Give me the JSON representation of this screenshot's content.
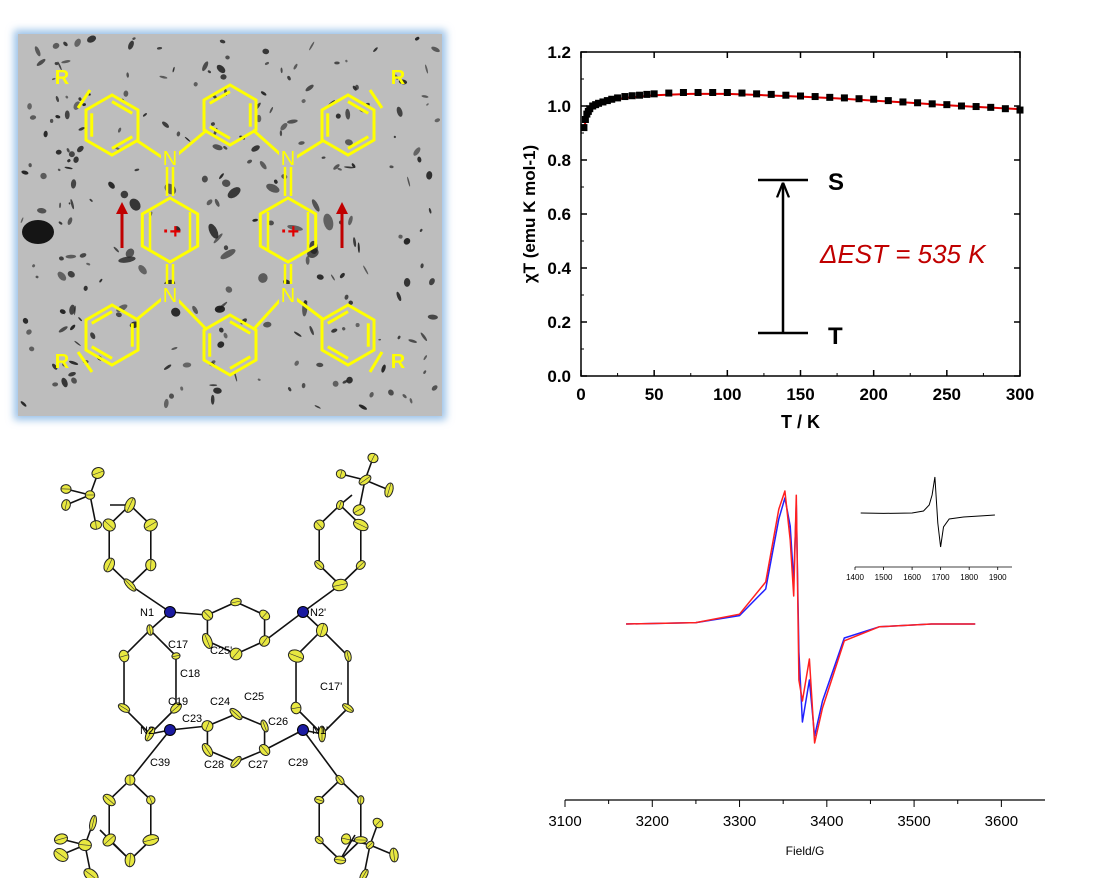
{
  "colors": {
    "molecule": "#ffff00",
    "radical": "#e00000",
    "arrow_red": "#c00000",
    "fit_line": "#e00000",
    "epr_red": "#ff2020",
    "epr_blue": "#2020ff",
    "nitrogen": "#1a1aa0",
    "ellipsoid": "#e8e840",
    "frame_glow": "#9cc2e8"
  },
  "structure_panel": {
    "substituent_labels": [
      "R",
      "R",
      "R",
      "R"
    ],
    "nitrogen_labels": [
      "N",
      "N",
      "N",
      "N"
    ],
    "radical_cation_label": "·+",
    "spin_arrow_icons": [
      "up-arrow",
      "up-arrow"
    ]
  },
  "crystal_panel": {
    "atom_labels": [
      "N1",
      "N2'",
      "C17",
      "C25'",
      "C18",
      "C19",
      "C24",
      "C25",
      "C17'",
      "N2",
      "C26",
      "N1'",
      "C23",
      "C39",
      "C28",
      "C27",
      "C29"
    ]
  },
  "chart_data": [
    {
      "type": "scatter",
      "title": "",
      "xlabel": "T / K",
      "ylabel": "χT (emu K mol-1)",
      "xlim": [
        0,
        300
      ],
      "ylim": [
        0,
        1.2
      ],
      "xticks": [
        "0",
        "50",
        "100",
        "150",
        "200",
        "250",
        "300"
      ],
      "yticks": [
        "0.0",
        "0.2",
        "0.4",
        "0.6",
        "0.8",
        "1.0",
        "1.2"
      ],
      "grid": false,
      "series": [
        {
          "marker": "square",
          "x": [
            2,
            3,
            4,
            5,
            6,
            8,
            10,
            12,
            15,
            18,
            21,
            25,
            30,
            35,
            40,
            45,
            50,
            60,
            70,
            80,
            90,
            100,
            110,
            120,
            130,
            140,
            150,
            160,
            170,
            180,
            190,
            200,
            210,
            220,
            230,
            240,
            250,
            260,
            270,
            280,
            290,
            300
          ],
          "y": [
            0.92,
            0.95,
            0.97,
            0.98,
            0.99,
            1.0,
            1.005,
            1.01,
            1.015,
            1.02,
            1.025,
            1.03,
            1.035,
            1.038,
            1.04,
            1.043,
            1.045,
            1.048,
            1.05,
            1.05,
            1.05,
            1.05,
            1.048,
            1.045,
            1.043,
            1.04,
            1.037,
            1.035,
            1.032,
            1.03,
            1.027,
            1.025,
            1.02,
            1.015,
            1.012,
            1.008,
            1.005,
            1.0,
            0.998,
            0.995,
            0.99,
            0.985
          ]
        },
        {
          "line": "fit",
          "x": [
            2,
            5,
            10,
            20,
            30,
            50,
            75,
            100,
            125,
            150,
            175,
            200,
            225,
            250,
            275,
            300
          ],
          "y": [
            0.92,
            0.975,
            1.0,
            1.02,
            1.03,
            1.04,
            1.045,
            1.045,
            1.04,
            1.035,
            1.028,
            1.02,
            1.012,
            1.003,
            0.995,
            0.988
          ]
        }
      ],
      "annotations": {
        "upper_label": "S",
        "lower_label": "T",
        "gap_label": "ΔEST = 535 K"
      }
    },
    {
      "type": "line",
      "title": "",
      "xlabel": "Field/G",
      "ylabel": "",
      "xlim": [
        3100,
        3650
      ],
      "xticks": [
        "3100",
        "3200",
        "3300",
        "3400",
        "3500",
        "3600"
      ],
      "series": [
        {
          "color": "red",
          "x": [
            3170,
            3250,
            3300,
            3330,
            3345,
            3352,
            3358,
            3362,
            3365,
            3368,
            3372,
            3380,
            3386,
            3395,
            3420,
            3460,
            3520,
            3570
          ],
          "y": [
            0,
            0.01,
            0.07,
            0.3,
            0.82,
            0.95,
            0.6,
            0.2,
            0.92,
            -0.4,
            -0.55,
            -0.25,
            -0.85,
            -0.6,
            -0.12,
            -0.02,
            0,
            0
          ]
        },
        {
          "color": "blue",
          "x": [
            3170,
            3250,
            3300,
            3330,
            3345,
            3352,
            3358,
            3362,
            3365,
            3368,
            3372,
            3380,
            3386,
            3395,
            3420,
            3460,
            3520,
            3570
          ],
          "y": [
            0,
            0.01,
            0.06,
            0.25,
            0.75,
            0.9,
            0.7,
            0.3,
            0.85,
            -0.2,
            -0.7,
            -0.4,
            -0.8,
            -0.55,
            -0.1,
            -0.02,
            0,
            0
          ]
        }
      ]
    },
    {
      "type": "line",
      "title": "",
      "xlabel": "",
      "xlim": [
        1400,
        1950
      ],
      "xticks": [
        "1400",
        "1500",
        "1600",
        "1700",
        "1800",
        "1900"
      ],
      "series": [
        {
          "color": "black",
          "x": [
            1420,
            1500,
            1600,
            1640,
            1660,
            1670,
            1680,
            1690,
            1700,
            1710,
            1730,
            1780,
            1850,
            1890
          ],
          "y": [
            0.05,
            0.04,
            0.05,
            0.1,
            0.25,
            0.5,
            0.95,
            -0.2,
            -0.8,
            -0.3,
            -0.1,
            -0.05,
            -0.02,
            0
          ]
        }
      ]
    }
  ]
}
